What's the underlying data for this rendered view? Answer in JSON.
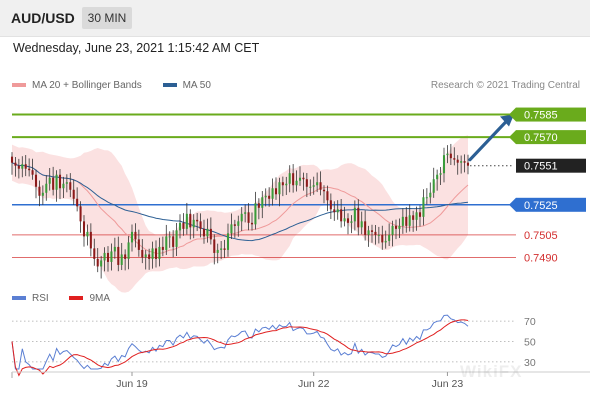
{
  "header": {
    "symbol": "AUD/USD",
    "timeframe": "30 MIN",
    "datetime": "Wednesday, June 23, 2021 1:15:42 AM CET"
  },
  "legend": {
    "items": [
      {
        "label": "MA 20 + Bollinger Bands",
        "color": "#ef9a9a"
      },
      {
        "label": "MA 50",
        "color": "#2c5f94"
      }
    ],
    "credit": "Research © 2021 Trading Central"
  },
  "rsi_legend": {
    "items": [
      {
        "label": "RSI",
        "color": "#5b7fd3"
      },
      {
        "label": "9MA",
        "color": "#e02020"
      }
    ]
  },
  "watermark": "WikiFX",
  "chart_data": [
    {
      "type": "candlestick",
      "panel": "price",
      "x_ticks": [
        "Jun 19",
        "Jun 22",
        "Jun 23"
      ],
      "ylim": [
        0.7475,
        0.7598
      ],
      "current_price": 0.7551,
      "levels": [
        {
          "label": "0.7585",
          "value": 0.7585,
          "color": "#6aab1c",
          "style": "resistance"
        },
        {
          "label": "0.7570",
          "value": 0.757,
          "color": "#6aab1c",
          "style": "resistance"
        },
        {
          "label": "0.7551",
          "value": 0.7551,
          "color": "#222222",
          "style": "current"
        },
        {
          "label": "0.7525",
          "value": 0.7525,
          "color": "#2f6fd0",
          "style": "pivot"
        },
        {
          "label": "0.7505",
          "value": 0.7505,
          "color": "#d32f2f",
          "style": "support"
        },
        {
          "label": "0.7490",
          "value": 0.749,
          "color": "#d32f2f",
          "style": "support"
        }
      ],
      "colors": {
        "up": "#3a9b3a",
        "down": "#8b1a1a",
        "wick": "#333333",
        "bollinger_fill": "#fadada",
        "ma20": "#ef9a9a",
        "ma50": "#2c5f94",
        "arrow": "#2c5f94"
      },
      "projection_target": 0.7585,
      "close": [
        0.7553,
        0.7551,
        0.7549,
        0.7552,
        0.7549,
        0.7548,
        0.7545,
        0.7537,
        0.7531,
        0.7533,
        0.7539,
        0.7543,
        0.7535,
        0.7545,
        0.7536,
        0.7539,
        0.754,
        0.7535,
        0.7529,
        0.7524,
        0.7514,
        0.7504,
        0.7507,
        0.7496,
        0.7489,
        0.7484,
        0.7488,
        0.7493,
        0.7487,
        0.7494,
        0.7497,
        0.7485,
        0.7492,
        0.7489,
        0.75,
        0.7507,
        0.7502,
        0.7495,
        0.749,
        0.7492,
        0.7489,
        0.7496,
        0.7489,
        0.7497,
        0.7495,
        0.7504,
        0.7504,
        0.7497,
        0.7508,
        0.7513,
        0.7509,
        0.7519,
        0.751,
        0.7515,
        0.7514,
        0.7509,
        0.7504,
        0.7509,
        0.7502,
        0.7493,
        0.7495,
        0.7496,
        0.7495,
        0.7506,
        0.7512,
        0.7511,
        0.7514,
        0.7519,
        0.752,
        0.7513,
        0.7512,
        0.7526,
        0.7523,
        0.753,
        0.7531,
        0.7529,
        0.7536,
        0.7532,
        0.754,
        0.7538,
        0.7539,
        0.7546,
        0.7538,
        0.7541,
        0.7543,
        0.7542,
        0.7537,
        0.7537,
        0.7538,
        0.754,
        0.7535,
        0.7534,
        0.7528,
        0.7522,
        0.752,
        0.7522,
        0.7514,
        0.7516,
        0.7513,
        0.7514,
        0.7523,
        0.751,
        0.7514,
        0.7505,
        0.7508,
        0.7507,
        0.7505,
        0.7505,
        0.75,
        0.7501,
        0.7505,
        0.7511,
        0.7509,
        0.7511,
        0.7517,
        0.7511,
        0.7518,
        0.7515,
        0.752,
        0.7517,
        0.753,
        0.753,
        0.7533,
        0.7542,
        0.7545,
        0.7546,
        0.7558,
        0.7559,
        0.7556,
        0.7555,
        0.7553,
        0.7554,
        0.7553,
        0.7551
      ]
    },
    {
      "type": "line",
      "panel": "rsi",
      "series": [
        {
          "name": "RSI"
        },
        {
          "name": "9MA"
        }
      ],
      "ylim": [
        22,
        78
      ],
      "y_ticks": [
        70,
        50,
        30
      ]
    }
  ]
}
